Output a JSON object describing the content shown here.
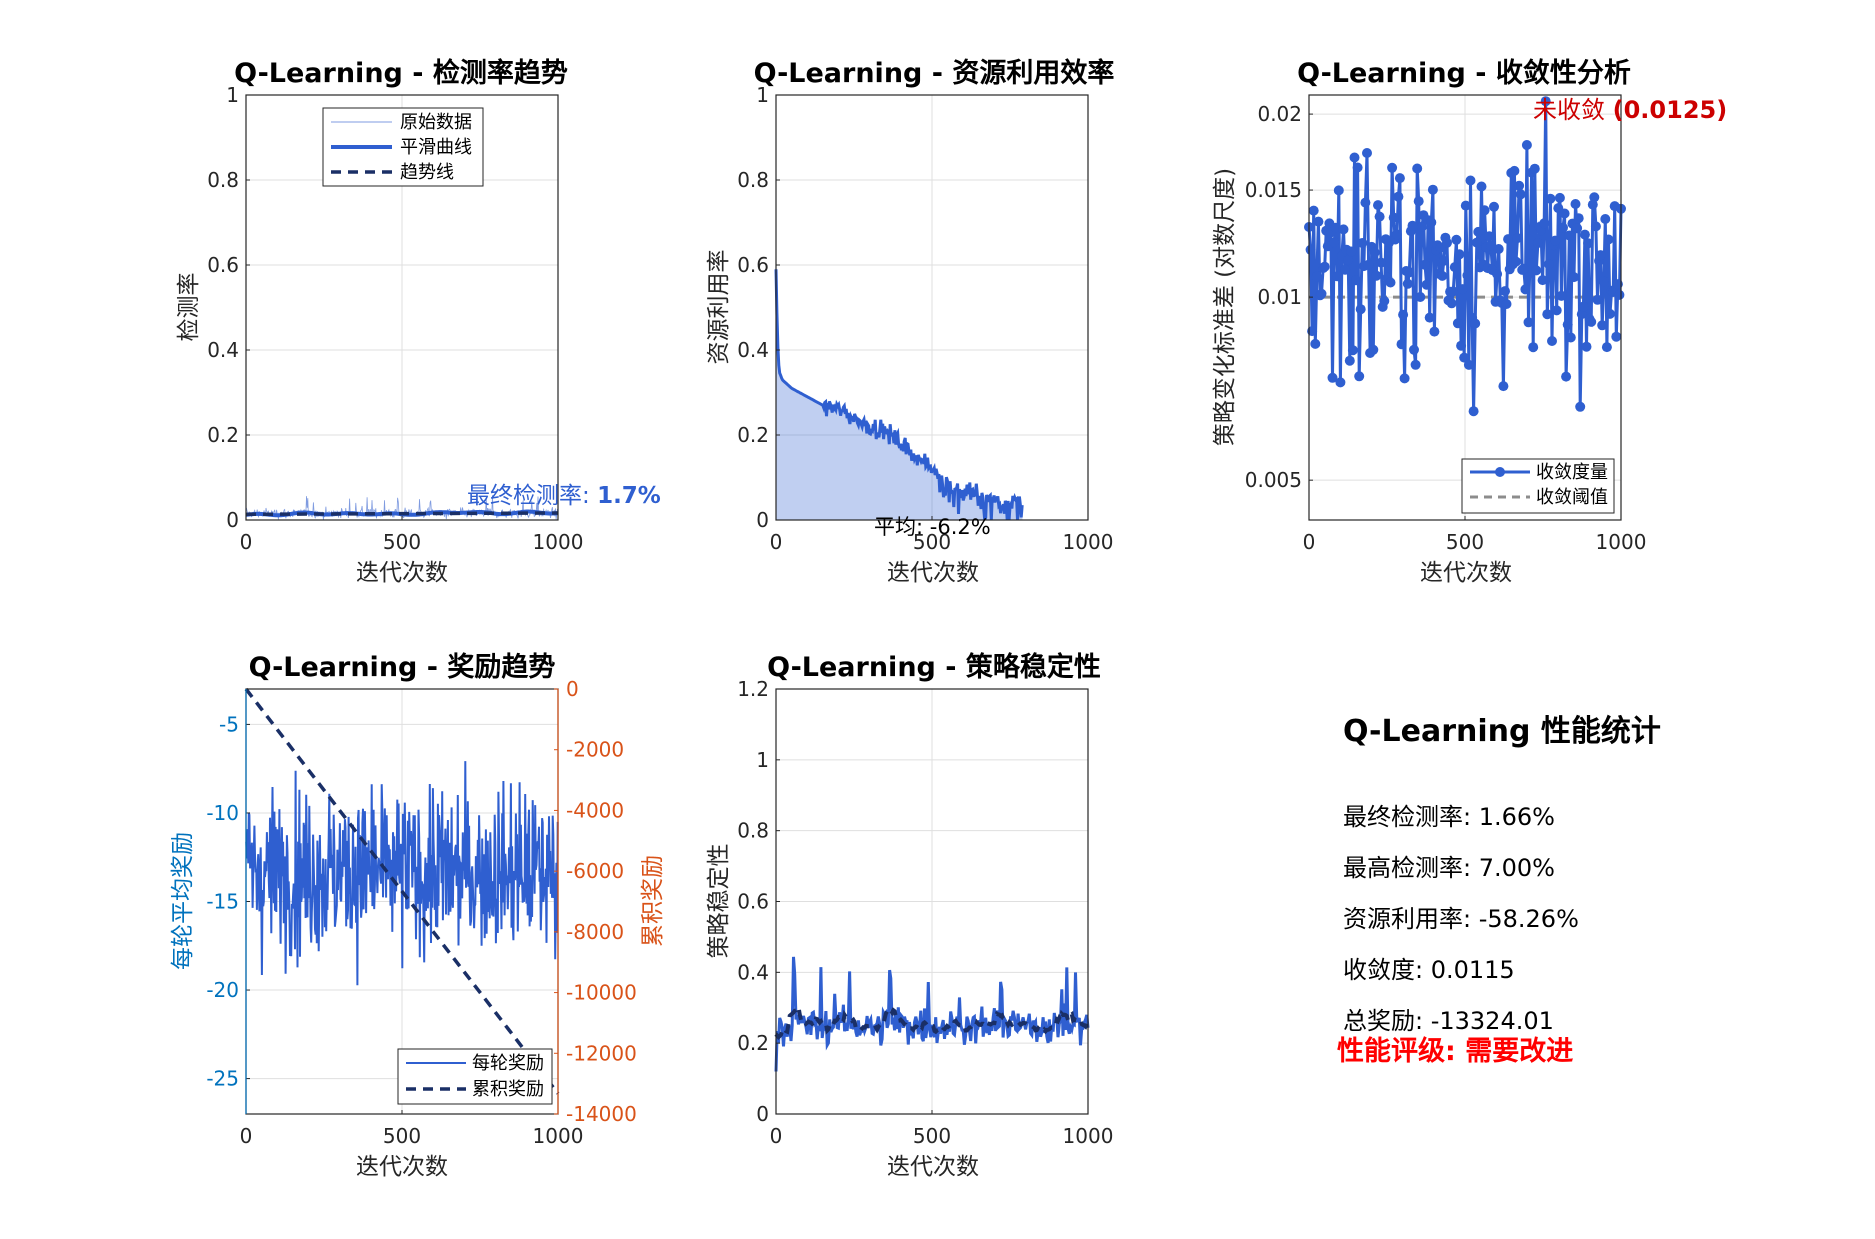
{
  "chart_data": [
    {
      "id": "detection",
      "type": "line",
      "title": "Q-Learning - 检测率趋势",
      "xlabel": "迭代次数",
      "ylabel": "检测率",
      "xlim": [
        0,
        1000
      ],
      "ylim": [
        0,
        1
      ],
      "xticks": [
        0,
        500,
        1000
      ],
      "yticks": [
        0,
        0.2,
        0.4,
        0.6,
        0.8,
        1
      ],
      "grid": true,
      "legend": {
        "position": "top-center",
        "entries": [
          "原始数据",
          "平滑曲线",
          "趋势线"
        ]
      },
      "series": [
        {
          "name": "原始数据",
          "color": "#7f9be0",
          "style": "thin",
          "x_range": [
            1,
            1000
          ],
          "mean": 0.016,
          "min": 0.0,
          "max": 0.07
        },
        {
          "name": "平滑曲线",
          "color": "#2f5fd0",
          "style": "thick",
          "x": [
            0,
            100,
            200,
            300,
            400,
            500,
            600,
            700,
            800,
            900,
            1000
          ],
          "values": [
            0.012,
            0.013,
            0.016,
            0.014,
            0.015,
            0.013,
            0.016,
            0.019,
            0.015,
            0.018,
            0.017
          ]
        },
        {
          "name": "趋势线",
          "color": "#1a2f66",
          "style": "dashed",
          "x": [
            0,
            1000
          ],
          "values": [
            0.0135,
            0.0165
          ]
        }
      ],
      "annotation": {
        "text_label": "最终检测率: ",
        "text_value": "1.7%",
        "color": "#2f5fd0"
      }
    },
    {
      "id": "resource",
      "type": "area",
      "title": "Q-Learning - 资源利用效率",
      "xlabel": "迭代次数",
      "ylabel": "资源利用率",
      "xlim": [
        0,
        1000
      ],
      "ylim": [
        0,
        1
      ],
      "xticks": [
        0,
        500,
        1000
      ],
      "yticks": [
        0,
        0.2,
        0.4,
        0.6,
        0.8,
        1
      ],
      "grid": true,
      "series": [
        {
          "color": "#2f5fd0",
          "x": [
            0,
            5,
            10,
            20,
            50,
            100,
            150,
            200,
            250,
            300,
            350,
            400,
            450,
            500,
            550,
            600,
            650,
            700,
            750,
            790,
            800
          ],
          "values": [
            0.59,
            0.42,
            0.35,
            0.33,
            0.31,
            0.29,
            0.27,
            0.26,
            0.24,
            0.22,
            0.21,
            0.18,
            0.15,
            0.12,
            0.09,
            0.07,
            0.06,
            0.05,
            0.04,
            0.04,
            0.0
          ]
        }
      ],
      "annotation": {
        "text": "平均: -6.2%"
      }
    },
    {
      "id": "convergence",
      "type": "line",
      "title": "Q-Learning - 收敛性分析",
      "xlabel": "迭代次数",
      "ylabel": "策略变化标准差 (对数尺度)",
      "xlim": [
        0,
        1000
      ],
      "ylim": [
        0.0043,
        0.0215
      ],
      "yscale": "log",
      "xticks": [
        0,
        500,
        1000
      ],
      "yticks": [
        0.005,
        0.01,
        0.015,
        0.02
      ],
      "ytick_labels": [
        "0.005",
        "0.01",
        "0.015",
        "0.02"
      ],
      "grid": true,
      "legend": {
        "position": "bottom-right",
        "entries": [
          "收敛度量",
          "收敛阈值"
        ]
      },
      "series": [
        {
          "name": "收敛度量",
          "color": "#2f5fd0",
          "markers": "circle",
          "x_range": [
            0,
            1000
          ],
          "count": 200,
          "min": 0.0042,
          "max": 0.021,
          "mean": 0.0115
        },
        {
          "name": "收敛阈值",
          "color": "#8c8c8c",
          "style": "dashed",
          "x": [
            0,
            1000
          ],
          "values": [
            0.01,
            0.01
          ]
        }
      ],
      "annotation": {
        "text_label": "未收敛 ",
        "text_value": "(0.0125)",
        "color": "#cc0000"
      }
    },
    {
      "id": "reward",
      "type": "line",
      "title": "Q-Learning - 奖励趋势",
      "xlabel": "迭代次数",
      "ylabel_left": "每轮平均奖励",
      "ylabel_right": "累积奖励",
      "xlim": [
        0,
        1000
      ],
      "ylim_left": [
        -27,
        -3
      ],
      "ylim_right": [
        -14000,
        0
      ],
      "xticks": [
        0,
        500,
        1000
      ],
      "yticks_left": [
        -25,
        -20,
        -15,
        -10,
        -5
      ],
      "yticks_right": [
        -14000,
        -12000,
        -10000,
        -8000,
        -6000,
        -4000,
        -2000,
        0
      ],
      "left_axis_color": "#0072bd",
      "right_axis_color": "#d95319",
      "grid": true,
      "legend": {
        "position": "bottom-right",
        "entries": [
          "每轮奖励",
          "累积奖励"
        ]
      },
      "series": [
        {
          "name": "每轮奖励",
          "color": "#2f5fd0",
          "axis": "left",
          "x_range": [
            1,
            1000
          ],
          "mean": -13.3,
          "min": -24.5,
          "max": -3.2
        },
        {
          "name": "累积奖励",
          "color": "#1a2f66",
          "style": "dashed",
          "axis": "right",
          "x": [
            0,
            1000
          ],
          "values": [
            0,
            -13324.01
          ]
        }
      ]
    },
    {
      "id": "stability",
      "type": "line",
      "title": "Q-Learning - 策略稳定性",
      "xlabel": "迭代次数",
      "ylabel": "策略稳定性",
      "xlim": [
        0,
        1000
      ],
      "ylim": [
        0,
        1.2
      ],
      "xticks": [
        0,
        500,
        1000
      ],
      "yticks": [
        0,
        0.2,
        0.4,
        0.6,
        0.8,
        1,
        1.2
      ],
      "grid": true,
      "series": [
        {
          "color": "#2f5fd0",
          "x_range": [
            0,
            1000
          ],
          "mean": 0.25,
          "min": 0.12,
          "max": 0.45
        },
        {
          "color": "#1a2f66",
          "style": "dashed",
          "x_range": [
            0,
            1000
          ],
          "mean": 0.25,
          "min": 0.2,
          "max": 0.32
        }
      ]
    }
  ],
  "stats": {
    "title": "Q-Learning 性能统计",
    "lines": [
      "最终检测率: 1.66%",
      "最高检测率: 7.00%",
      "资源利用率: -58.26%",
      "收敛度: 0.0115",
      "总奖励: -13324.01"
    ],
    "rating": "性能评级: 需要改进",
    "rating_color": "#ff0000"
  }
}
